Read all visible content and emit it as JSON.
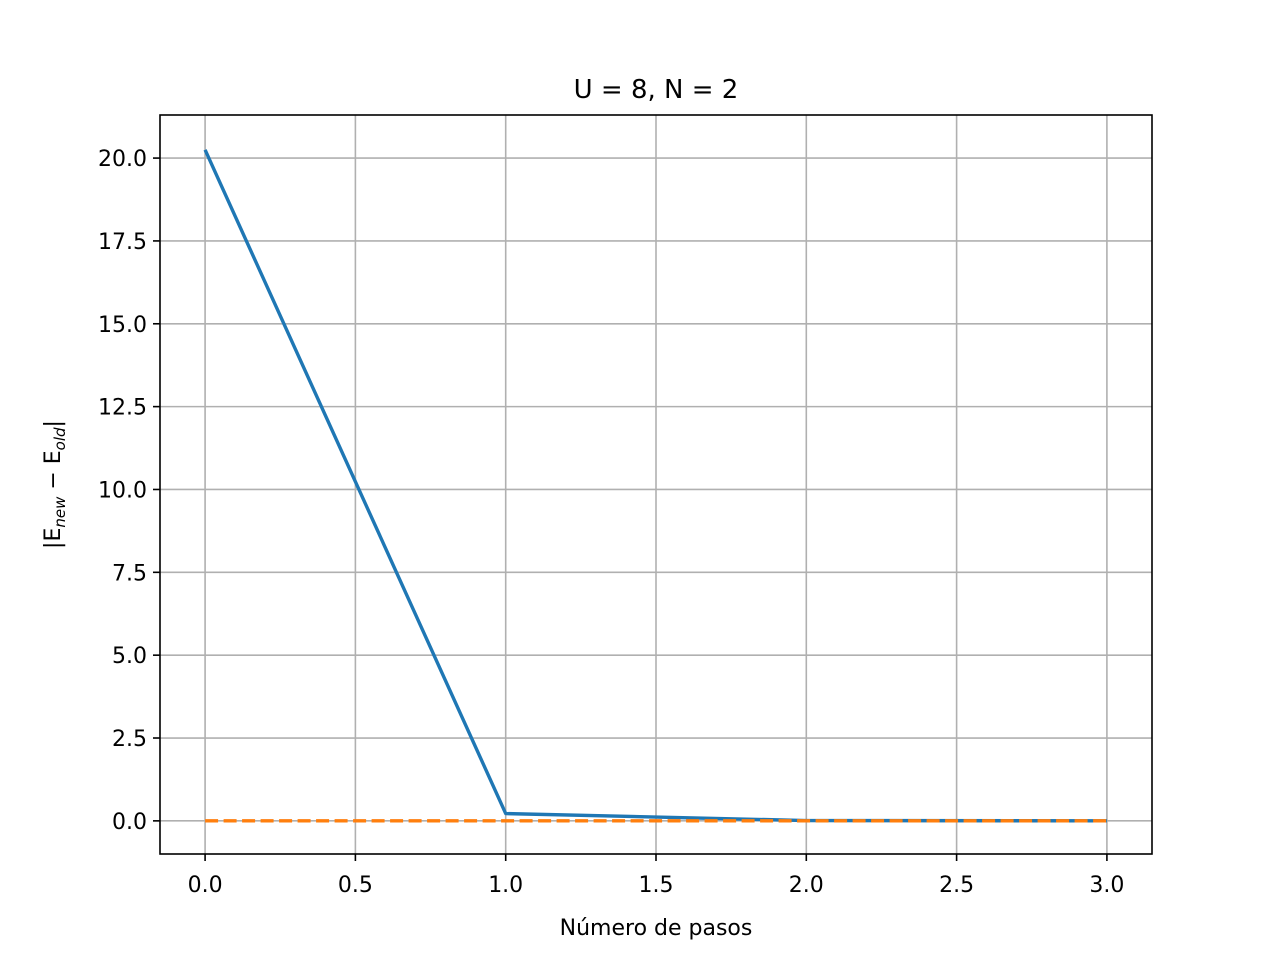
{
  "chart_data": {
    "type": "line",
    "title": "U = 8, N = 2",
    "xlabel": "Número de pasos",
    "ylabel": {
      "main": "|E",
      "sub_new": "new",
      "minus": " − E",
      "sub_old": "old",
      "close": "|"
    },
    "xlim": [
      -0.15,
      3.15
    ],
    "ylim": [
      -1.0,
      21.3
    ],
    "xticks": [
      0.0,
      0.5,
      1.0,
      1.5,
      2.0,
      2.5,
      3.0
    ],
    "xtick_labels": [
      "0.0",
      "0.5",
      "1.0",
      "1.5",
      "2.0",
      "2.5",
      "3.0"
    ],
    "yticks": [
      0.0,
      2.5,
      5.0,
      7.5,
      10.0,
      12.5,
      15.0,
      17.5,
      20.0
    ],
    "ytick_labels": [
      "0.0",
      "2.5",
      "5.0",
      "7.5",
      "10.0",
      "12.5",
      "15.0",
      "17.5",
      "20.0"
    ],
    "grid": true,
    "series": [
      {
        "x": [
          0,
          1,
          2,
          3
        ],
        "y": [
          20.25,
          0.22,
          0.01,
          0.0
        ],
        "color": "#1f77b4",
        "style": "solid"
      },
      {
        "x": [
          0,
          1,
          2,
          3
        ],
        "y": [
          0.0,
          0.0,
          0.0,
          0.0
        ],
        "color": "#ff7f0e",
        "style": "dashed"
      }
    ]
  }
}
